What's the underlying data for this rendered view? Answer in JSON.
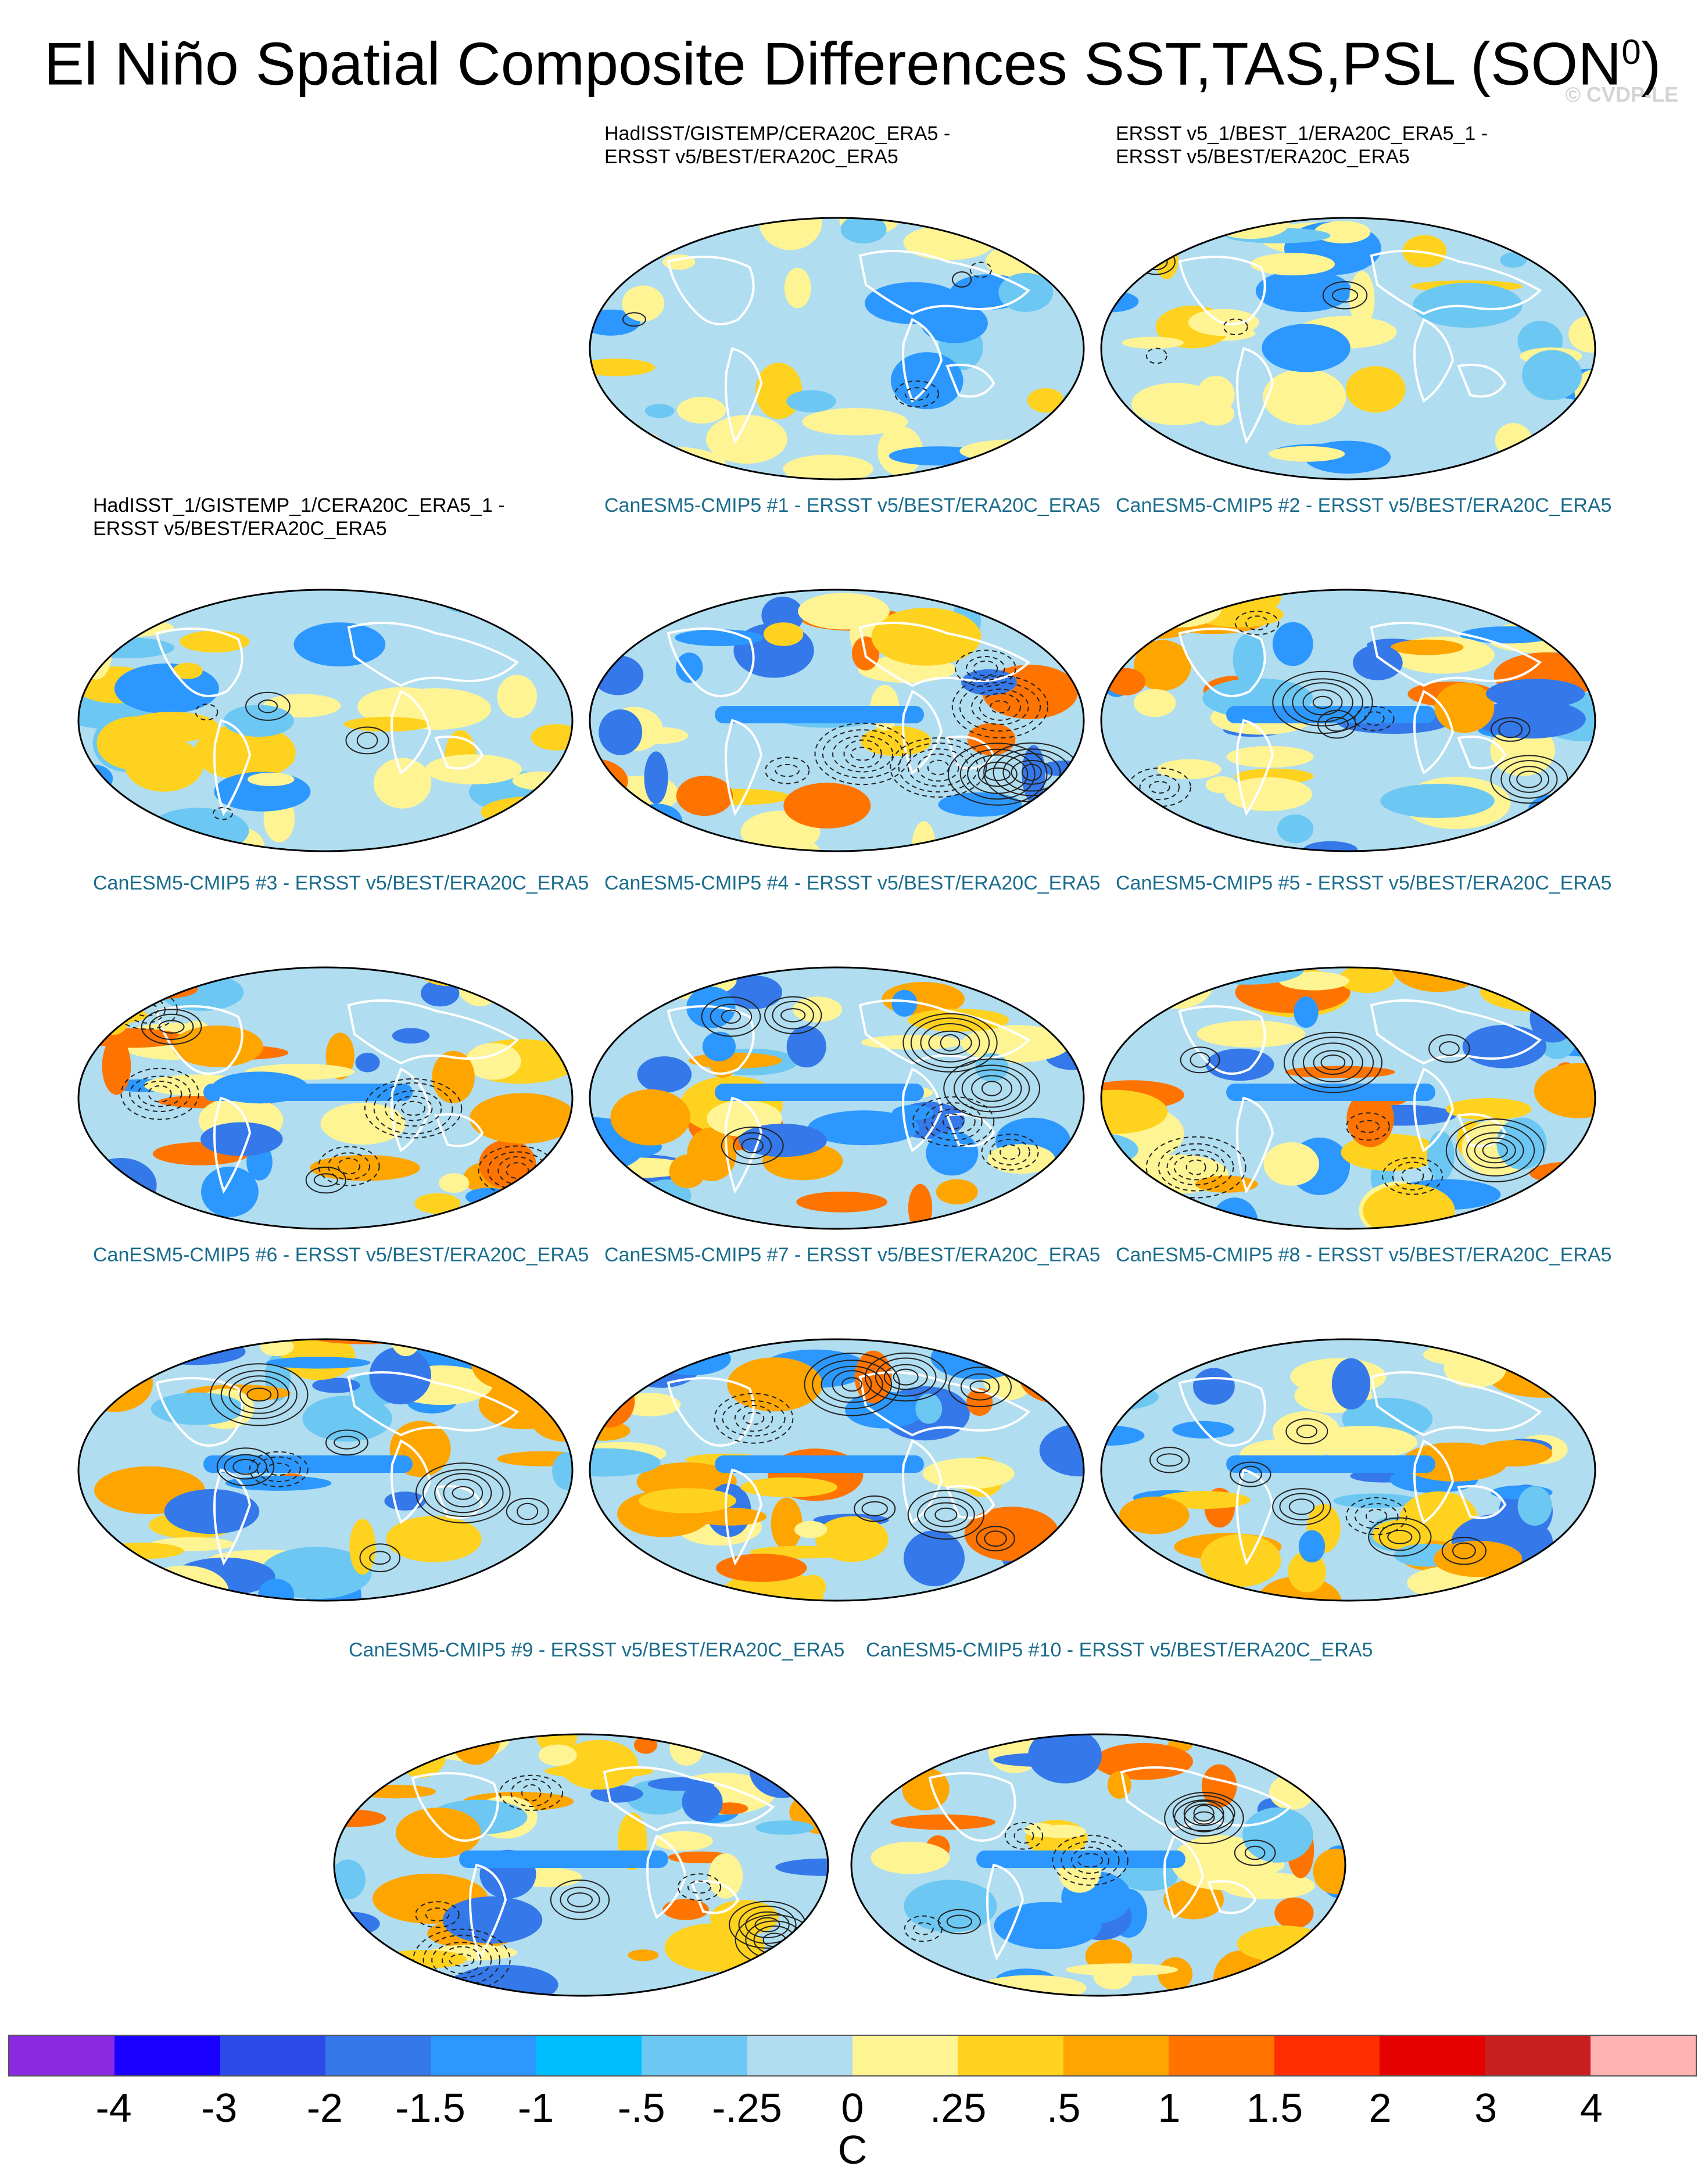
{
  "title": "El Niño Spatial Composite Differences SST,TAS,PSL (SON",
  "title_sup": "0",
  "title_close": ")",
  "credit": "© CVDP-LE",
  "panels": [
    {
      "l1": "HadISST/GISTEMP/CERA20C_ERA5 -",
      "l2": "ERSST v5/BEST/ERA20C_ERA5",
      "kind": "obs",
      "seed": 3
    },
    {
      "l1": "ERSST v5_1/BEST_1/ERA20C_ERA5_1 -",
      "l2": "ERSST v5/BEST/ERA20C_ERA5",
      "kind": "obs",
      "seed": 7
    },
    {
      "l1": "HadISST_1/GISTEMP_1/CERA20C_ERA5_1 -",
      "l2": "ERSST v5/BEST/ERA20C_ERA5",
      "kind": "obs",
      "seed": 11
    },
    {
      "l1": "CanESM5-CMIP5 #1 - ERSST v5/BEST/ERA20C_ERA5",
      "l2": "",
      "kind": "model",
      "seed": 13
    },
    {
      "l1": "CanESM5-CMIP5 #2 - ERSST v5/BEST/ERA20C_ERA5",
      "l2": "",
      "kind": "model",
      "seed": 17
    },
    {
      "l1": "CanESM5-CMIP5 #3 - ERSST v5/BEST/ERA20C_ERA5",
      "l2": "",
      "kind": "model",
      "seed": 19
    },
    {
      "l1": "CanESM5-CMIP5 #4 - ERSST v5/BEST/ERA20C_ERA5",
      "l2": "",
      "kind": "model",
      "seed": 23
    },
    {
      "l1": "CanESM5-CMIP5 #5 - ERSST v5/BEST/ERA20C_ERA5",
      "l2": "",
      "kind": "model",
      "seed": 29
    },
    {
      "l1": "CanESM5-CMIP5 #6 - ERSST v5/BEST/ERA20C_ERA5",
      "l2": "",
      "kind": "model",
      "seed": 31
    },
    {
      "l1": "CanESM5-CMIP5 #7 - ERSST v5/BEST/ERA20C_ERA5",
      "l2": "",
      "kind": "model",
      "seed": 37
    },
    {
      "l1": "CanESM5-CMIP5 #8 - ERSST v5/BEST/ERA20C_ERA5",
      "l2": "",
      "kind": "model",
      "seed": 41
    },
    {
      "l1": "CanESM5-CMIP5 #9 - ERSST v5/BEST/ERA20C_ERA5",
      "l2": "",
      "kind": "model",
      "seed": 43
    },
    {
      "l1": "CanESM5-CMIP5 #10 - ERSST v5/BEST/ERA20C_ERA5",
      "l2": "",
      "kind": "model",
      "seed": 47
    }
  ],
  "colorbar": {
    "colors": [
      "#8a2be2",
      "#1a00ff",
      "#2b4ae8",
      "#3478ea",
      "#2c98ff",
      "#00bfff",
      "#6cc8f2",
      "#b0ddf0",
      "#fff494",
      "#ffd21f",
      "#ffa500",
      "#ff7400",
      "#ff2e00",
      "#e60000",
      "#c81e1e",
      "#ffb3b3"
    ],
    "ticks": [
      "-4",
      "-3",
      "-2",
      "-1.5",
      "-1",
      "-.5",
      "-.25",
      "0",
      ".25",
      ".5",
      "1",
      "1.5",
      "2",
      "3",
      "4"
    ],
    "units": "C"
  }
}
